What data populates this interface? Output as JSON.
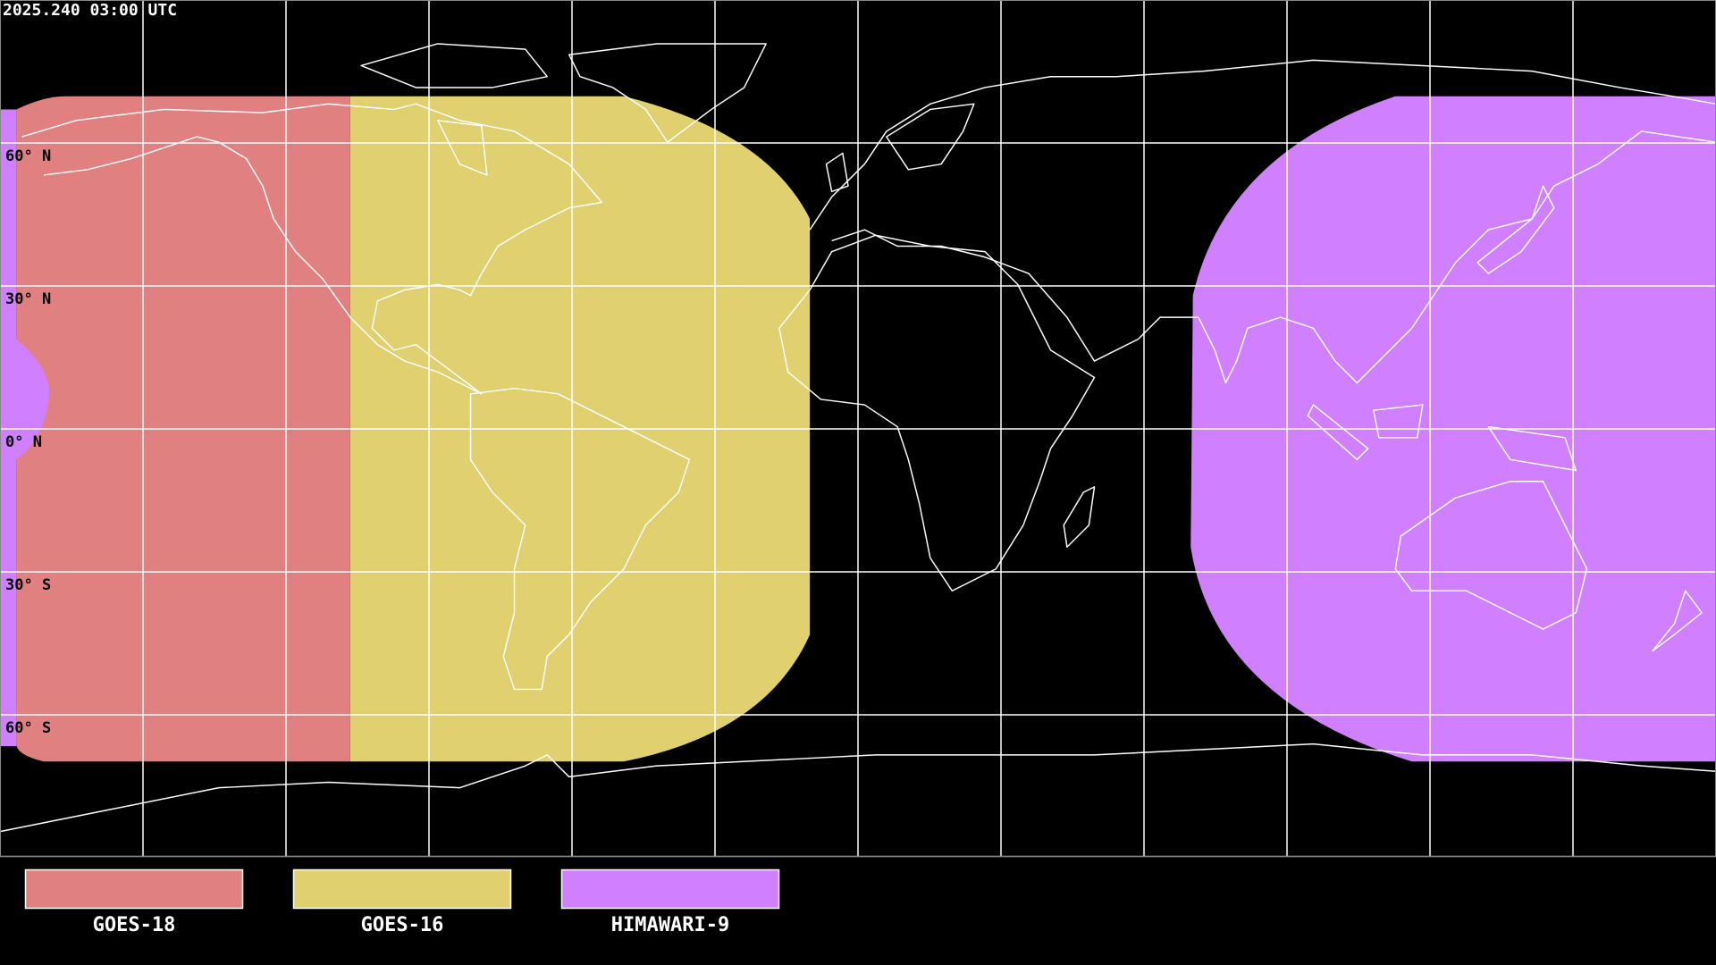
{
  "header": {
    "timestamp": "2025.240 03:00 UTC"
  },
  "map": {
    "projection": "equirectangular",
    "lon_range": [
      -180,
      180
    ],
    "lat_range": [
      -90,
      90
    ],
    "grid_spacing_deg": 30,
    "lat_labels": [
      "60° N",
      "30° N",
      "0° N",
      "30° S",
      "60° S"
    ],
    "background_color": "#000000",
    "coastline_color": "#ffffff"
  },
  "legend": {
    "items": [
      {
        "label": "GOES-18",
        "color": "#e08080"
      },
      {
        "label": "GOES-16",
        "color": "#e0d070"
      },
      {
        "label": "HIMAWARI-9",
        "color": "#d080ff"
      }
    ]
  }
}
